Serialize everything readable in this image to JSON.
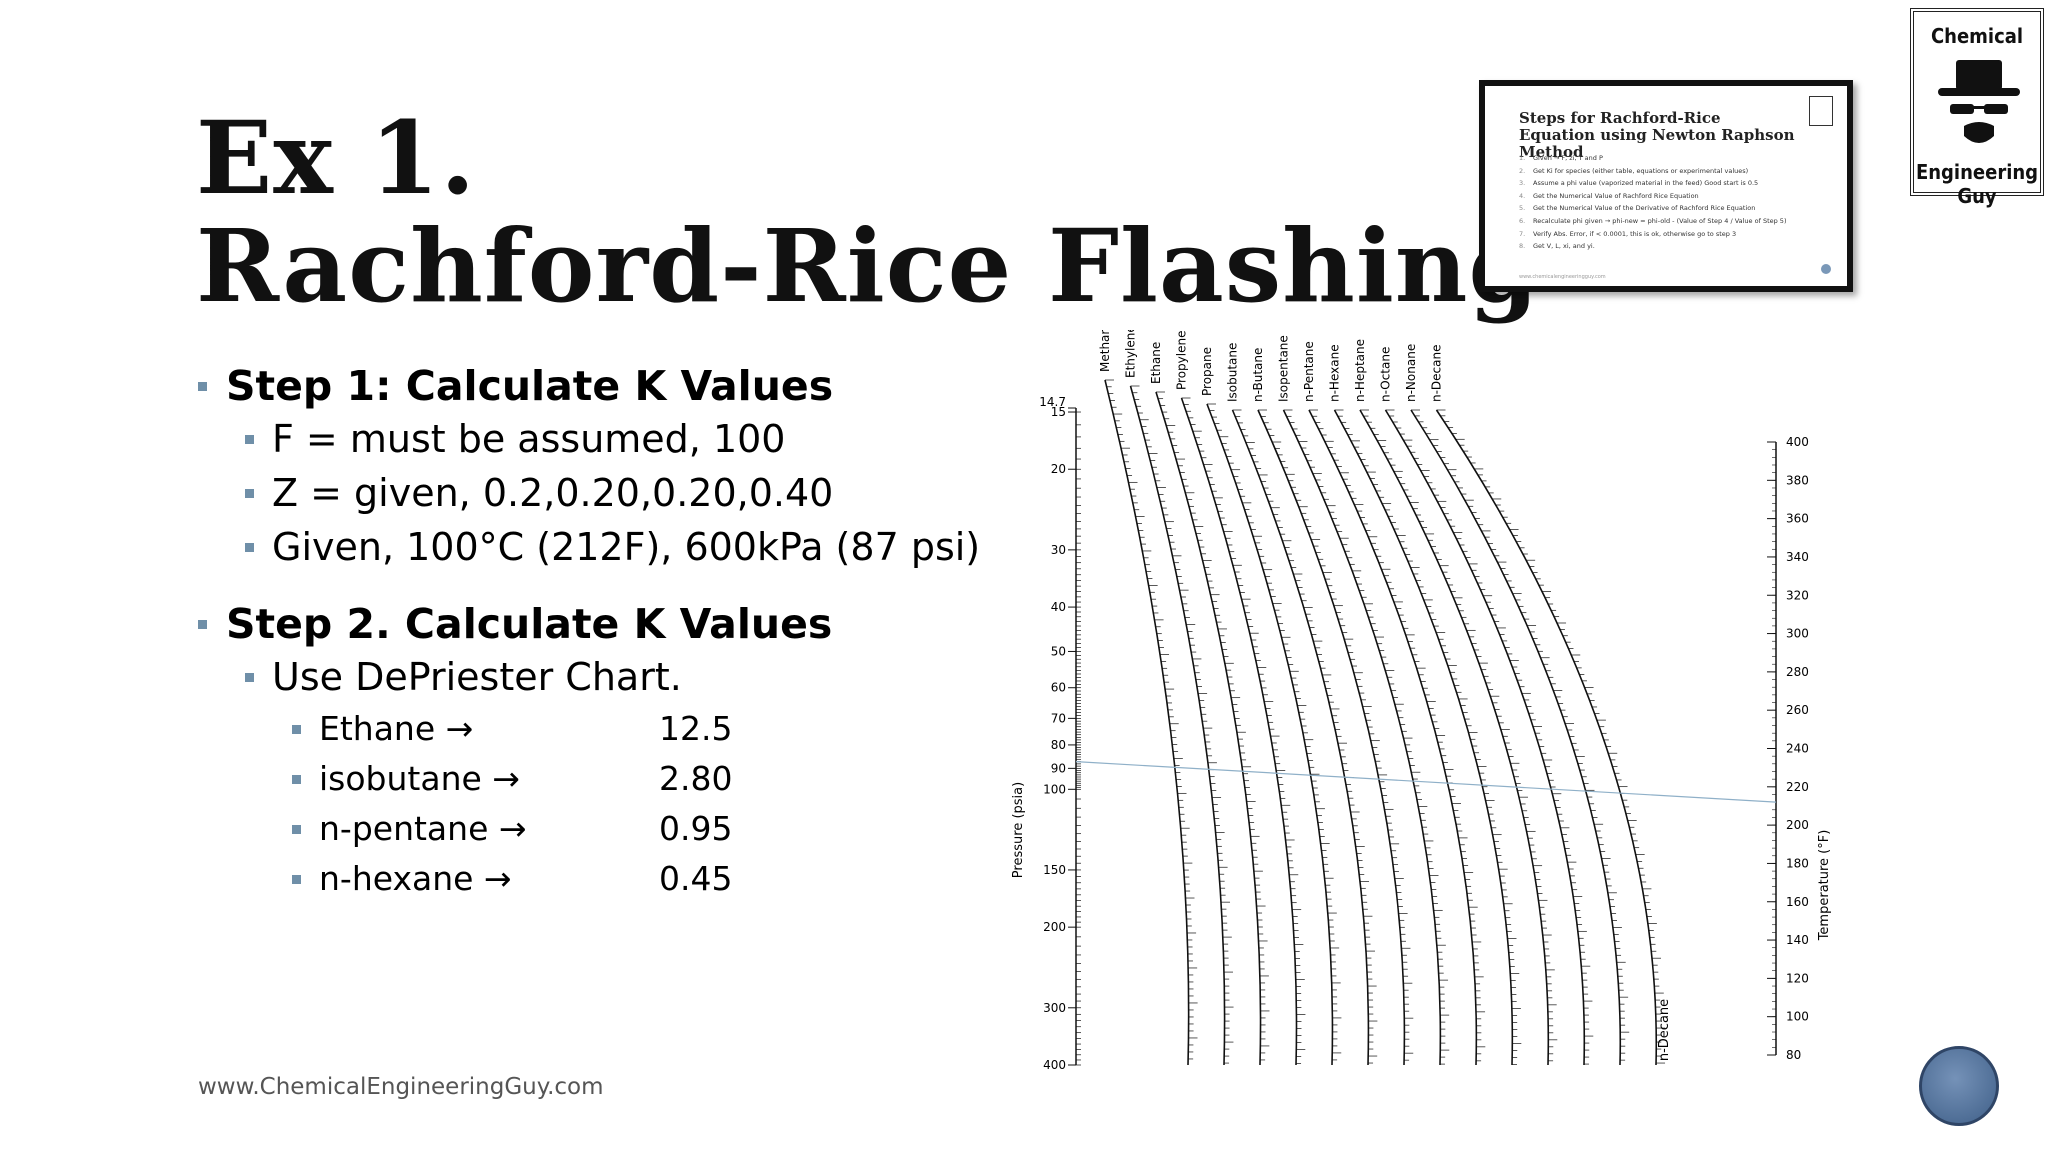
{
  "slide": {
    "title_line1": "Ex 1.",
    "title_line2": "Rachford-Rice Flashing",
    "step1": {
      "heading": "Step 1: Calculate K Values",
      "items": [
        "F = must be assumed, 100",
        "Z = given, 0.2,0.20,0.20,0.40",
        "Given, 100°C (212F), 600kPa (87 psi)"
      ]
    },
    "step2": {
      "heading": "Step 2. Calculate K Values",
      "sub": "Use DePriester Chart.",
      "k_values": [
        {
          "name": "Ethane →",
          "value": "12.5"
        },
        {
          "name": "isobutane →",
          "value": "2.80"
        },
        {
          "name": "n-pentane →",
          "value": "0.95"
        },
        {
          "name": "n-hexane →",
          "value": "0.45"
        }
      ]
    },
    "footer": "www.ChemicalEngineeringGuy.com"
  },
  "thumbnail": {
    "title": "Steps for Rachford-Rice Equation using Newton Raphson Method",
    "steps": [
      "Given → F, zi, T and P",
      "Get Ki for species (either table, equations or experimental values)",
      "Assume a phi value (vaporized material in the feed) Good start is 0.5",
      "Get the Numerical Value of Rachford Rice Equation",
      "Get the Numerical Value of the Derivative of Rachford Rice Equation",
      "Recalculate phi given → phi-new = phi-old - (Value of Step 4 / Value of Step 5)",
      "Verify Abs. Error, if < 0.0001, this is ok, otherwise go to step 3",
      "Get V, L, xi, and yi."
    ],
    "footer": "www.chemicalengineeringguy.com"
  },
  "logo": {
    "top": "Chemical",
    "bottom": "Engineering Guy",
    "icon": "heisenberg-hat-icon"
  },
  "chart": {
    "pressure_label": "Pressure (psia)",
    "temperature_label": "Temperature (°F)",
    "pressure_ticks": [
      "14.7",
      "15",
      "20",
      "30",
      "40",
      "50",
      "60",
      "70",
      "80",
      "90",
      "100",
      "150",
      "200",
      "300",
      "400"
    ],
    "temperature_ticks": [
      "400",
      "380",
      "360",
      "340",
      "320",
      "300",
      "280",
      "260",
      "240",
      "220",
      "200",
      "180",
      "160",
      "140",
      "120",
      "100",
      "80"
    ],
    "components": [
      "Methane",
      "Ethylene",
      "Ethane",
      "Propylene",
      "Propane",
      "Isobutane",
      "n-Butane",
      "Isopentane",
      "n-Pentane",
      "n-Hexane",
      "n-Heptane",
      "n-Octane",
      "n-Nonane",
      "n-Decane"
    ],
    "bottom_label": "n-Decane",
    "read_line": {
      "pressure_psia": 87,
      "temperature_F": 212
    }
  },
  "colors": {
    "bullet": "#6f8fa8",
    "read_line": "#8fb0c8",
    "nav": "#4f6f98"
  }
}
